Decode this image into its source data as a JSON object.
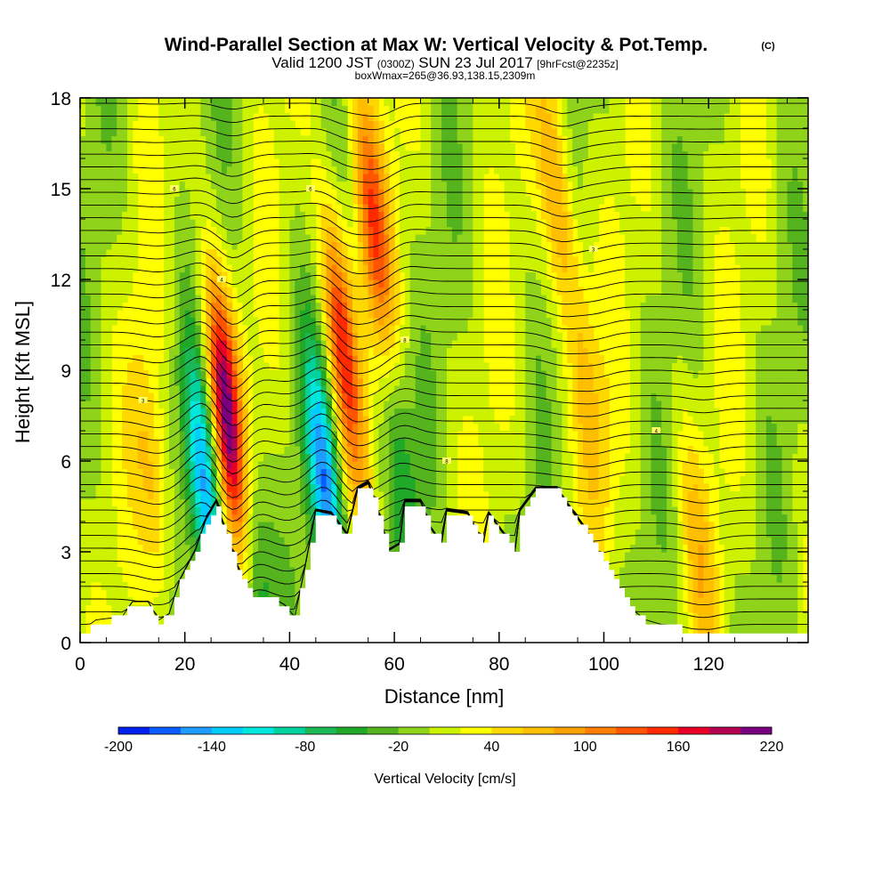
{
  "chart_data": {
    "type": "heatmap",
    "title": "Wind-Parallel Section at Max W: Vertical Velocity & Pot.Temp.",
    "title_mark": "(C)",
    "subtitle_parts": [
      "Valid 1200 JST",
      "(0300Z)",
      "SUN 23 Jul 2017",
      "[9hrFcst@2235z]"
    ],
    "subtitle2": "boxWmax=265@36.93,138.15,2309m",
    "xlabel": "Distance [nm]",
    "ylabel": "Height [Kft MSL]",
    "xlim": [
      0,
      139
    ],
    "ylim": [
      0,
      18
    ],
    "x_ticks": [
      "0",
      "20",
      "40",
      "60",
      "80",
      "100",
      "120"
    ],
    "y_ticks": [
      "0",
      "3",
      "6",
      "9",
      "12",
      "15",
      "18"
    ],
    "colorbar": {
      "label": "Vertical Velocity [cm/s]",
      "tick_labels": [
        "-200",
        "-140",
        "-80",
        "-20",
        "40",
        "100",
        "160",
        "220"
      ],
      "levels": [
        -200,
        -180,
        -160,
        -140,
        -120,
        -100,
        -80,
        -60,
        -40,
        -20,
        0,
        20,
        40,
        60,
        80,
        100,
        120,
        140,
        160,
        180,
        200,
        220
      ],
      "colors": [
        "#0022ee",
        "#0a5cff",
        "#1e9cff",
        "#00ccff",
        "#00e8dd",
        "#00d2a0",
        "#1bb855",
        "#20a828",
        "#55b41e",
        "#8fd31b",
        "#ccf200",
        "#ffff00",
        "#ffd800",
        "#ffbe00",
        "#ffa200",
        "#ff7d00",
        "#ff5500",
        "#ff2a00",
        "#e80028",
        "#b40050",
        "#7a0080"
      ]
    },
    "updrafts": [
      {
        "x": 14,
        "z": 5,
        "w": 60
      },
      {
        "x": 28,
        "z": 7.5,
        "w": 220
      },
      {
        "x": 50,
        "z": 10,
        "w": 150
      },
      {
        "x": 56,
        "z": 14,
        "w": 120
      },
      {
        "x": 91,
        "z": 15,
        "w": 90
      },
      {
        "x": 97,
        "z": 8,
        "w": 60
      },
      {
        "x": 118,
        "z": 3,
        "w": 50
      }
    ],
    "downdrafts": [
      {
        "x": 24,
        "z": 5,
        "w": -140
      },
      {
        "x": 47,
        "z": 5,
        "w": -150
      },
      {
        "x": 33,
        "z": 3,
        "w": -80
      },
      {
        "x": 61,
        "z": 6,
        "w": -60
      }
    ],
    "terrain_kft": [
      [
        0,
        0.3
      ],
      [
        3,
        0.7
      ],
      [
        8,
        0.8
      ],
      [
        10,
        1.3
      ],
      [
        13,
        1.3
      ],
      [
        15,
        0.7
      ],
      [
        17,
        0.9
      ],
      [
        19,
        2
      ],
      [
        22,
        3
      ],
      [
        24,
        4
      ],
      [
        26,
        4.6
      ],
      [
        27,
        4
      ],
      [
        29,
        3
      ],
      [
        31,
        2
      ],
      [
        33,
        1.4
      ],
      [
        37,
        1.4
      ],
      [
        39,
        1.2
      ],
      [
        41,
        0.8
      ],
      [
        43,
        2.5
      ],
      [
        45,
        4.3
      ],
      [
        48,
        4.2
      ],
      [
        51,
        3.5
      ],
      [
        53,
        5
      ],
      [
        55,
        5.2
      ],
      [
        57,
        4.2
      ],
      [
        59,
        3
      ],
      [
        61,
        3.2
      ],
      [
        62,
        4.6
      ],
      [
        65,
        4.6
      ],
      [
        67,
        3.7
      ],
      [
        69,
        3.2
      ],
      [
        70,
        4.3
      ],
      [
        74,
        4.2
      ],
      [
        77,
        3.2
      ],
      [
        78,
        4.2
      ],
      [
        81,
        3.5
      ],
      [
        83,
        2.9
      ],
      [
        84,
        4.3
      ],
      [
        87,
        5.0
      ],
      [
        91,
        5.0
      ],
      [
        93,
        4.5
      ],
      [
        96,
        3.8
      ],
      [
        99,
        2.9
      ],
      [
        102,
        2.0
      ],
      [
        105,
        1.1
      ],
      [
        108,
        0.7
      ],
      [
        112,
        0.5
      ],
      [
        116,
        0.4
      ],
      [
        139,
        0.3
      ]
    ],
    "theta_labels": [
      "3",
      "4",
      "6",
      "8"
    ]
  }
}
